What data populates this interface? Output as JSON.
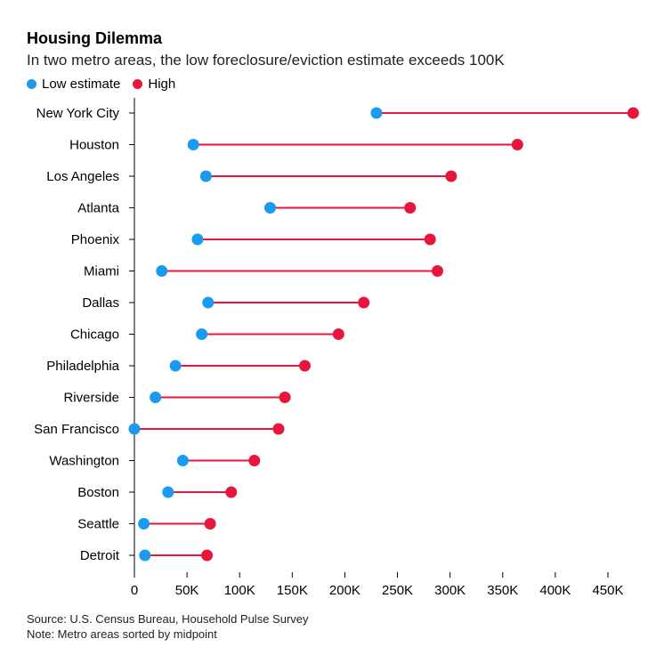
{
  "title": "Housing Dilemma",
  "subtitle": "In two metro areas, the low foreclosure/eviction estimate exceeds 100K",
  "legend": {
    "low_label": "Low estimate",
    "high_label": "High"
  },
  "colors": {
    "low": "#1a9bf0",
    "high": "#e8163c",
    "axis": "#000000",
    "grid": "#888888"
  },
  "footer": {
    "source": "Source: U.S. Census Bureau, Household Pulse Survey",
    "note": "Note: Metro areas sorted by midpoint"
  },
  "chart_data": {
    "type": "dumbbell",
    "categories": [
      "New York City",
      "Houston",
      "Los Angeles",
      "Atlanta",
      "Phoenix",
      "Miami",
      "Dallas",
      "Chicago",
      "Philadelphia",
      "Riverside",
      "San Francisco",
      "Washington",
      "Boston",
      "Seattle",
      "Detroit"
    ],
    "series": [
      {
        "name": "Low estimate",
        "values": [
          230000,
          56000,
          68000,
          129000,
          60000,
          26000,
          70000,
          64000,
          39000,
          20000,
          0,
          46000,
          32000,
          9000,
          10000
        ]
      },
      {
        "name": "High",
        "values": [
          474000,
          364000,
          301000,
          262000,
          281000,
          288000,
          218000,
          194000,
          162000,
          143000,
          137000,
          114000,
          92000,
          72000,
          69000
        ]
      }
    ],
    "x_ticks": [
      "0",
      "50K",
      "100K",
      "150K",
      "200K",
      "250K",
      "300K",
      "350K",
      "400K",
      "450K"
    ],
    "x_tick_values": [
      0,
      50000,
      100000,
      150000,
      200000,
      250000,
      300000,
      350000,
      400000,
      450000
    ],
    "xlim": [
      0,
      480000
    ],
    "grid": false,
    "legend_position": "top-left"
  }
}
